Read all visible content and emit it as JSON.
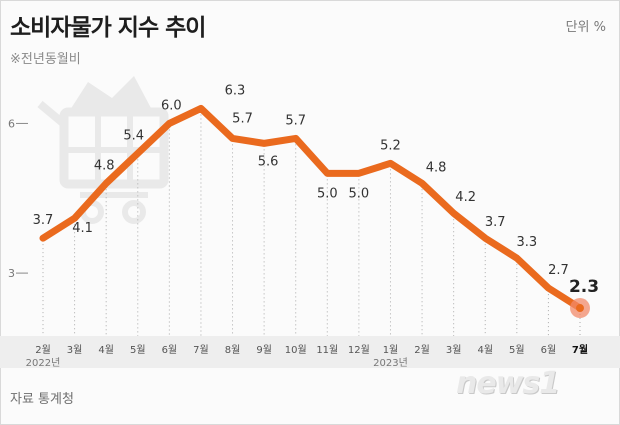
{
  "header": {
    "title": "소비자물가 지수 추이",
    "subtitle": "※전년동월비",
    "unit": "단위 %"
  },
  "footer": {
    "source": "자료 통계청",
    "logo_text": "news1"
  },
  "colors": {
    "line": "#ea6a1e",
    "last_point": "#f28a6a",
    "axis_band": "#eeeeee",
    "guide": "#aaaaaa"
  },
  "icons": [
    "shopping-cart-icon"
  ],
  "chart_data": {
    "type": "line",
    "categories": [
      "2월",
      "3월",
      "4월",
      "5월",
      "6월",
      "7월",
      "8월",
      "9월",
      "10월",
      "11월",
      "12월",
      "1월",
      "2월",
      "3월",
      "4월",
      "5월",
      "6월",
      "7월"
    ],
    "year_labels": [
      {
        "index": 0,
        "label": "2022년"
      },
      {
        "index": 11,
        "label": "2023년"
      }
    ],
    "values": [
      3.7,
      4.1,
      4.8,
      5.4,
      6.0,
      6.3,
      5.7,
      5.6,
      5.7,
      5.0,
      5.0,
      5.2,
      4.8,
      4.2,
      3.7,
      3.3,
      2.7,
      2.3
    ],
    "y_ticks": [
      3,
      6
    ],
    "ylim": [
      2.1,
      6.55
    ],
    "highlight_last": true,
    "grid": false,
    "title": "소비자물가 지수 추이"
  }
}
